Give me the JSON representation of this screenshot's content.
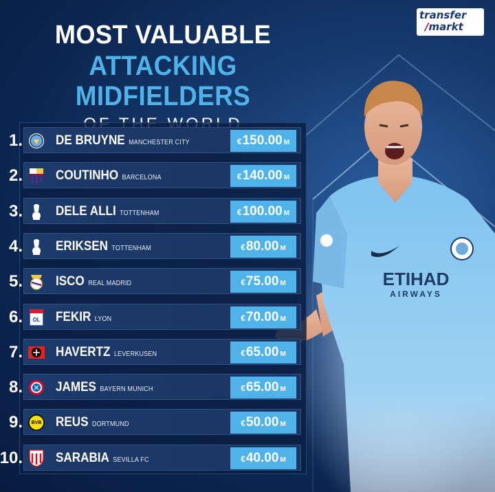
{
  "header": {
    "title_line1": "MOST VALUABLE",
    "title_line2": "ATTACKING MIDFIELDERS",
    "title_line3": "OF THE WORLD"
  },
  "logo": {
    "line1": "transfer",
    "line2_mark": "/",
    "line2": "markt"
  },
  "colors": {
    "accent": "#4fb3ea",
    "background": "#0b2550",
    "panel": "#1c3a6a"
  },
  "currency_symbol": "€",
  "unit": "M",
  "players": [
    {
      "rank": "1.",
      "name": "DE BRUYNE",
      "club": "MANCHESTER CITY",
      "value": "150.00",
      "badge": "man-city-badge-icon"
    },
    {
      "rank": "2.",
      "name": "COUTINHO",
      "club": "BARCELONA",
      "value": "140.00",
      "badge": "barcelona-badge-icon"
    },
    {
      "rank": "3.",
      "name": "DELE ALLI",
      "club": "TOTTENHAM",
      "value": "100.00",
      "badge": "tottenham-badge-icon"
    },
    {
      "rank": "4.",
      "name": "ERIKSEN",
      "club": "TOTTENHAM",
      "value": "80.00",
      "badge": "tottenham-badge-icon"
    },
    {
      "rank": "5.",
      "name": "ISCO",
      "club": "REAL MADRID",
      "value": "75.00",
      "badge": "real-madrid-badge-icon"
    },
    {
      "rank": "6.",
      "name": "FEKIR",
      "club": "LYON",
      "value": "70.00",
      "badge": "lyon-badge-icon"
    },
    {
      "rank": "7.",
      "name": "HAVERTZ",
      "club": "LEVERKUSEN",
      "value": "65.00",
      "badge": "leverkusen-badge-icon"
    },
    {
      "rank": "8.",
      "name": "JAMES",
      "club": "BAYERN MUNICH",
      "value": "65.00",
      "badge": "bayern-badge-icon"
    },
    {
      "rank": "9.",
      "name": "REUS",
      "club": "DORTMUND",
      "value": "50.00",
      "badge": "dortmund-badge-icon"
    },
    {
      "rank": "10.",
      "name": "SARABIA",
      "club": "SEVILLA FC",
      "value": "40.00",
      "badge": "sevilla-badge-icon"
    }
  ],
  "player_shirt": {
    "sponsor_line1": "ETIHAD",
    "sponsor_line2": "AIRWAYS"
  }
}
